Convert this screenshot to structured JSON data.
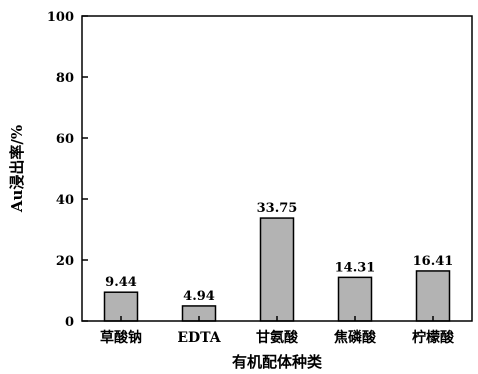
{
  "chart_data": {
    "type": "bar",
    "categories": [
      "草酸钠",
      "EDTA",
      "甘氨酸",
      "焦磷酸",
      "柠檬酸"
    ],
    "values": [
      9.44,
      4.94,
      33.75,
      14.31,
      16.41
    ],
    "data_labels": [
      "9.44",
      "4.94",
      "33.75",
      "14.31",
      "16.41"
    ],
    "title": "",
    "xlabel": "有机配体种类",
    "ylabel": "Au浸出率/%",
    "ylim": [
      0,
      100
    ],
    "yticks": [
      0,
      20,
      40,
      60,
      80,
      100
    ],
    "grid": false,
    "colors": {
      "bar_fill": "#b3b3b3",
      "bar_stroke": "#000000",
      "axis": "#000000"
    }
  }
}
